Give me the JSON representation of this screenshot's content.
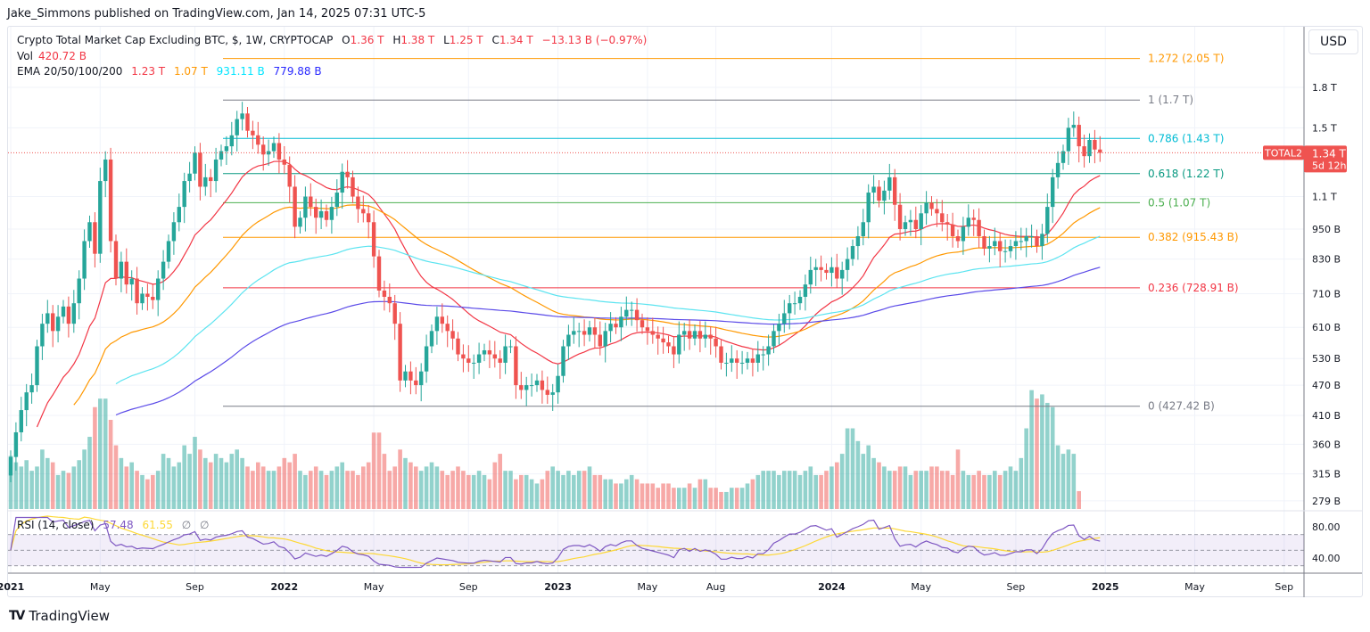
{
  "published": "Jake_Simmons published on TradingView.com, Jan 14, 2025 07:31 UTC-5",
  "legend": {
    "title": "Crypto Total Market Cap Excluding BTC, $, 1W, CRYPTOCAP",
    "o_label": "O",
    "o": "1.36 T",
    "h_label": "H",
    "h": "1.38 T",
    "l_label": "L",
    "l": "1.25 T",
    "c_label": "C",
    "c": "1.34 T",
    "change": "−13.13 B (−0.97%)",
    "vol_label": "Vol",
    "vol": "420.72 B",
    "ema_label": "EMA 20/50/100/200",
    "ema20": "1.23 T",
    "ema50": "1.07 T",
    "ema100": "931.11 B",
    "ema200": "779.88 B",
    "rsi_label": "RSI (14, close)",
    "rsi": "57.48",
    "rsi_ma": "61.55",
    "rsi_na1": "∅",
    "rsi_na2": "∅"
  },
  "currency_button": "USD",
  "price_tag": {
    "symbol": "TOTAL2",
    "price": "1.34 T",
    "countdown": "5d 12h"
  },
  "footer_logo": "TradingView",
  "colors": {
    "up": "#26a69a",
    "down": "#ef5350",
    "ema20": "#f23645",
    "ema50": "#ff9800",
    "ema100": "#5ce4f0",
    "ema200": "#5b4be8",
    "rsi": "#7e57c2",
    "rsi_ma": "#fdd835"
  },
  "chart_data": {
    "type": "candlestick",
    "timeframe": "1W",
    "scale": "log",
    "first_week": "2020-12-28",
    "y_ticks": [
      {
        "v": 1800,
        "label": "1.8 T"
      },
      {
        "v": 1500,
        "label": "1.5 T"
      },
      {
        "v": 1100,
        "label": "1.1 T"
      },
      {
        "v": 950,
        "label": "950 B"
      },
      {
        "v": 830,
        "label": "830 B"
      },
      {
        "v": 710,
        "label": "710 B"
      },
      {
        "v": 610,
        "label": "610 B"
      },
      {
        "v": 530,
        "label": "530 B"
      },
      {
        "v": 470,
        "label": "470 B"
      },
      {
        "v": 410,
        "label": "410 B"
      },
      {
        "v": 360,
        "label": "360 B"
      },
      {
        "v": 315,
        "label": "315 B"
      },
      {
        "v": 279,
        "label": "279 B"
      }
    ],
    "x_ticks": [
      {
        "label": "2021",
        "week": 0,
        "bold": true
      },
      {
        "label": "May",
        "week": 17
      },
      {
        "label": "Sep",
        "week": 35
      },
      {
        "label": "2022",
        "week": 52,
        "bold": true
      },
      {
        "label": "May",
        "week": 69
      },
      {
        "label": "Sep",
        "week": 87
      },
      {
        "label": "2023",
        "week": 104,
        "bold": true
      },
      {
        "label": "May",
        "week": 121
      },
      {
        "label": "Aug",
        "week": 134
      },
      {
        "label": "2024",
        "week": 156,
        "bold": true
      },
      {
        "label": "May",
        "week": 173
      },
      {
        "label": "Sep",
        "week": 191
      },
      {
        "label": "2025",
        "week": 208,
        "bold": true
      },
      {
        "label": "May",
        "week": 225
      },
      {
        "label": "Sep",
        "week": 242
      }
    ],
    "close_billions": [
      340,
      380,
      420,
      455,
      470,
      560,
      620,
      650,
      600,
      640,
      670,
      620,
      680,
      760,
      900,
      980,
      850,
      1180,
      1300,
      900,
      760,
      820,
      740,
      760,
      680,
      710,
      700,
      690,
      760,
      820,
      900,
      980,
      1050,
      1180,
      1220,
      1340,
      1150,
      1200,
      1180,
      1300,
      1350,
      1380,
      1450,
      1560,
      1600,
      1480,
      1450,
      1390,
      1330,
      1350,
      1400,
      1300,
      1270,
      1150,
      960,
      1000,
      1100,
      1050,
      1000,
      1030,
      990,
      1050,
      1120,
      1230,
      1200,
      1100,
      1040,
      1020,
      980,
      840,
      720,
      700,
      680,
      620,
      480,
      500,
      480,
      470,
      500,
      560,
      600,
      640,
      620,
      600,
      580,
      540,
      530,
      520,
      520,
      540,
      550,
      540,
      530,
      520,
      560,
      560,
      470,
      460,
      470,
      470,
      480,
      460,
      450,
      455,
      490,
      560,
      590,
      600,
      600,
      590,
      610,
      590,
      560,
      600,
      620,
      610,
      640,
      660,
      660,
      630,
      610,
      600,
      590,
      580,
      570,
      560,
      540,
      590,
      600,
      580,
      600,
      580,
      590,
      580,
      560,
      520,
      520,
      530,
      520,
      520,
      530,
      520,
      540,
      540,
      560,
      600,
      620,
      650,
      680,
      680,
      700,
      740,
      790,
      800,
      790,
      780,
      800,
      760,
      790,
      830,
      880,
      920,
      980,
      1120,
      1150,
      1080,
      1130,
      1200,
      1060,
      950,
      980,
      990,
      950,
      1020,
      1070,
      1040,
      1020,
      980,
      970,
      920,
      900,
      960,
      1000,
      990,
      920,
      870,
      880,
      900,
      860,
      860,
      880,
      900,
      900,
      920,
      920,
      880,
      930,
      1050,
      1200,
      1280,
      1350,
      1500,
      1520,
      1380,
      1320,
      1420,
      1360,
      1340
    ],
    "volume_billions": [
      1250,
      1100,
      1000,
      1150,
      900,
      1000,
      1400,
      1200,
      1100,
      800,
      900,
      850,
      1000,
      1150,
      1400,
      1700,
      2400,
      2600,
      2600,
      2100,
      1500,
      1200,
      1000,
      1100,
      900,
      800,
      700,
      800,
      900,
      1300,
      1200,
      1000,
      1100,
      1500,
      1300,
      1700,
      1400,
      1200,
      1100,
      1300,
      1200,
      1100,
      1300,
      1400,
      1200,
      1000,
      900,
      1100,
      1000,
      900,
      900,
      1000,
      1200,
      1100,
      1300,
      900,
      800,
      900,
      1000,
      900,
      800,
      900,
      1000,
      1100,
      900,
      900,
      800,
      1000,
      1100,
      1800,
      1800,
      1300,
      900,
      1000,
      1400,
      1200,
      1100,
      1000,
      900,
      1000,
      1100,
      1000,
      900,
      800,
      900,
      1000,
      900,
      800,
      800,
      900,
      800,
      700,
      1100,
      1300,
      900,
      900,
      700,
      800,
      800,
      700,
      600,
      700,
      900,
      1000,
      900,
      800,
      900,
      800,
      900,
      900,
      1000,
      800,
      800,
      700,
      700,
      600,
      600,
      700,
      800,
      700,
      600,
      600,
      600,
      500,
      600,
      600,
      500,
      500,
      500,
      600,
      500,
      700,
      700,
      500,
      500,
      400,
      400,
      500,
      500,
      500,
      600,
      700,
      800,
      900,
      900,
      900,
      800,
      900,
      900,
      900,
      800,
      900,
      1000,
      800,
      800,
      900,
      1000,
      1100,
      1300,
      1900,
      1900,
      1600,
      1300,
      1500,
      1200,
      1100,
      1000,
      900,
      900,
      1000,
      1000,
      800,
      900,
      900,
      900,
      1000,
      1000,
      900,
      900,
      800,
      1400,
      900,
      800,
      800,
      900,
      800,
      800,
      900,
      800,
      900,
      1000,
      900,
      1200,
      1900,
      2800,
      2600,
      2700,
      2500,
      2400,
      1500,
      1300,
      1400,
      1300,
      420.72
    ],
    "fib_levels": [
      {
        "ratio": "1.272",
        "label": "1.272 (2.05 T)",
        "v": 2050,
        "color": "#ff9800"
      },
      {
        "ratio": "1",
        "label": "1 (1.7 T)",
        "v": 1700,
        "color": "#787b86"
      },
      {
        "ratio": "0.786",
        "label": "0.786 (1.43 T)",
        "v": 1430,
        "color": "#00bcd4"
      },
      {
        "ratio": "0.618",
        "label": "0.618 (1.22 T)",
        "v": 1220,
        "color": "#089981"
      },
      {
        "ratio": "0.5",
        "label": "0.5 (1.07 T)",
        "v": 1070,
        "color": "#4caf50"
      },
      {
        "ratio": "0.382",
        "label": "0.382 (915.43 B)",
        "v": 915.43,
        "color": "#ff9800"
      },
      {
        "ratio": "0.236",
        "label": "0.236 (728.91 B)",
        "v": 728.91,
        "color": "#f23645"
      },
      {
        "ratio": "0",
        "label": "0 (427.42 B)",
        "v": 427.42,
        "color": "#787b86"
      }
    ],
    "rsi_ticks": [
      {
        "v": 80,
        "label": "80.00"
      },
      {
        "v": 40,
        "label": "40.00"
      }
    ],
    "rsi_bands": [
      70,
      50,
      30
    ],
    "ema_periods": [
      20,
      50,
      100,
      200
    ]
  }
}
